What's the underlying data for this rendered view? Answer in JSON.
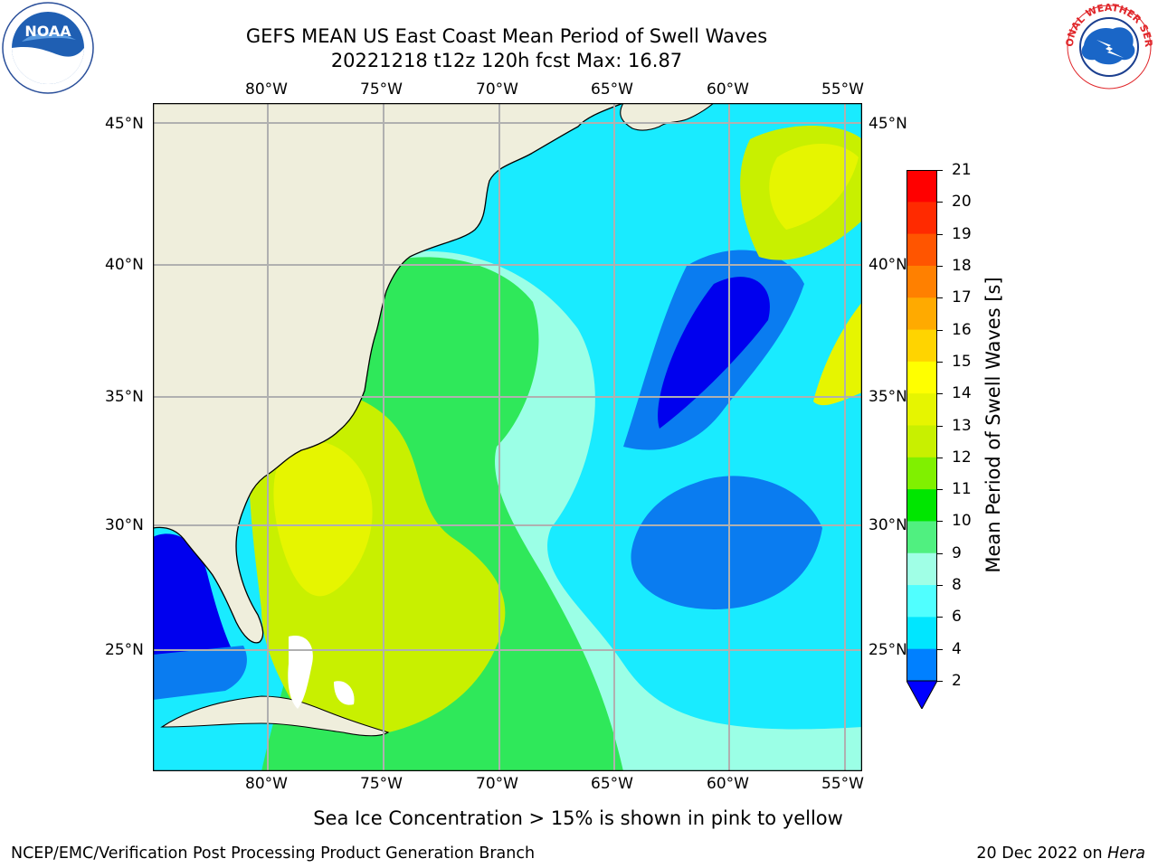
{
  "title": {
    "line1": "GEFS MEAN US East Coast Mean Period of Swell Waves",
    "line2": "20221218 t12z 120h fcst   Max: 16.87"
  },
  "logos": {
    "left": {
      "name": "noaa-logo",
      "text": "NOAA"
    },
    "right": {
      "name": "nws-logo",
      "text": "NATIONAL WEATHER SERVICE"
    }
  },
  "map": {
    "lon_labels": [
      "80°W",
      "75°W",
      "70°W",
      "65°W",
      "60°W",
      "55°W"
    ],
    "lat_labels": [
      "45°N",
      "40°N",
      "35°N",
      "30°N",
      "25°N"
    ],
    "land_color": "#efeedc",
    "gridline_color": "#b0b0b0"
  },
  "colorbar": {
    "label": "Mean Period of Swell Waves [s]",
    "ticks": [
      "21",
      "20",
      "19",
      "18",
      "17",
      "16",
      "15",
      "14",
      "13",
      "12",
      "11",
      "10",
      "9",
      "8",
      "6",
      "4",
      "2"
    ],
    "colors": [
      "#ff0000",
      "#ff2a00",
      "#ff5500",
      "#ff8000",
      "#ffaa00",
      "#ffd400",
      "#ffff00",
      "#e6f500",
      "#c8f000",
      "#80f000",
      "#00e600",
      "#50f080",
      "#a0ffe6",
      "#50ffff",
      "#00e6ff",
      "#0080ff",
      "#0000ff"
    ]
  },
  "subtitle": "Sea Ice Concentration > 15% is shown in pink to yellow",
  "footer": {
    "left": "NCEP/EMC/Verification Post Processing Product Generation Branch",
    "right_date": "20 Dec 2022 on ",
    "right_host": "Hera"
  }
}
